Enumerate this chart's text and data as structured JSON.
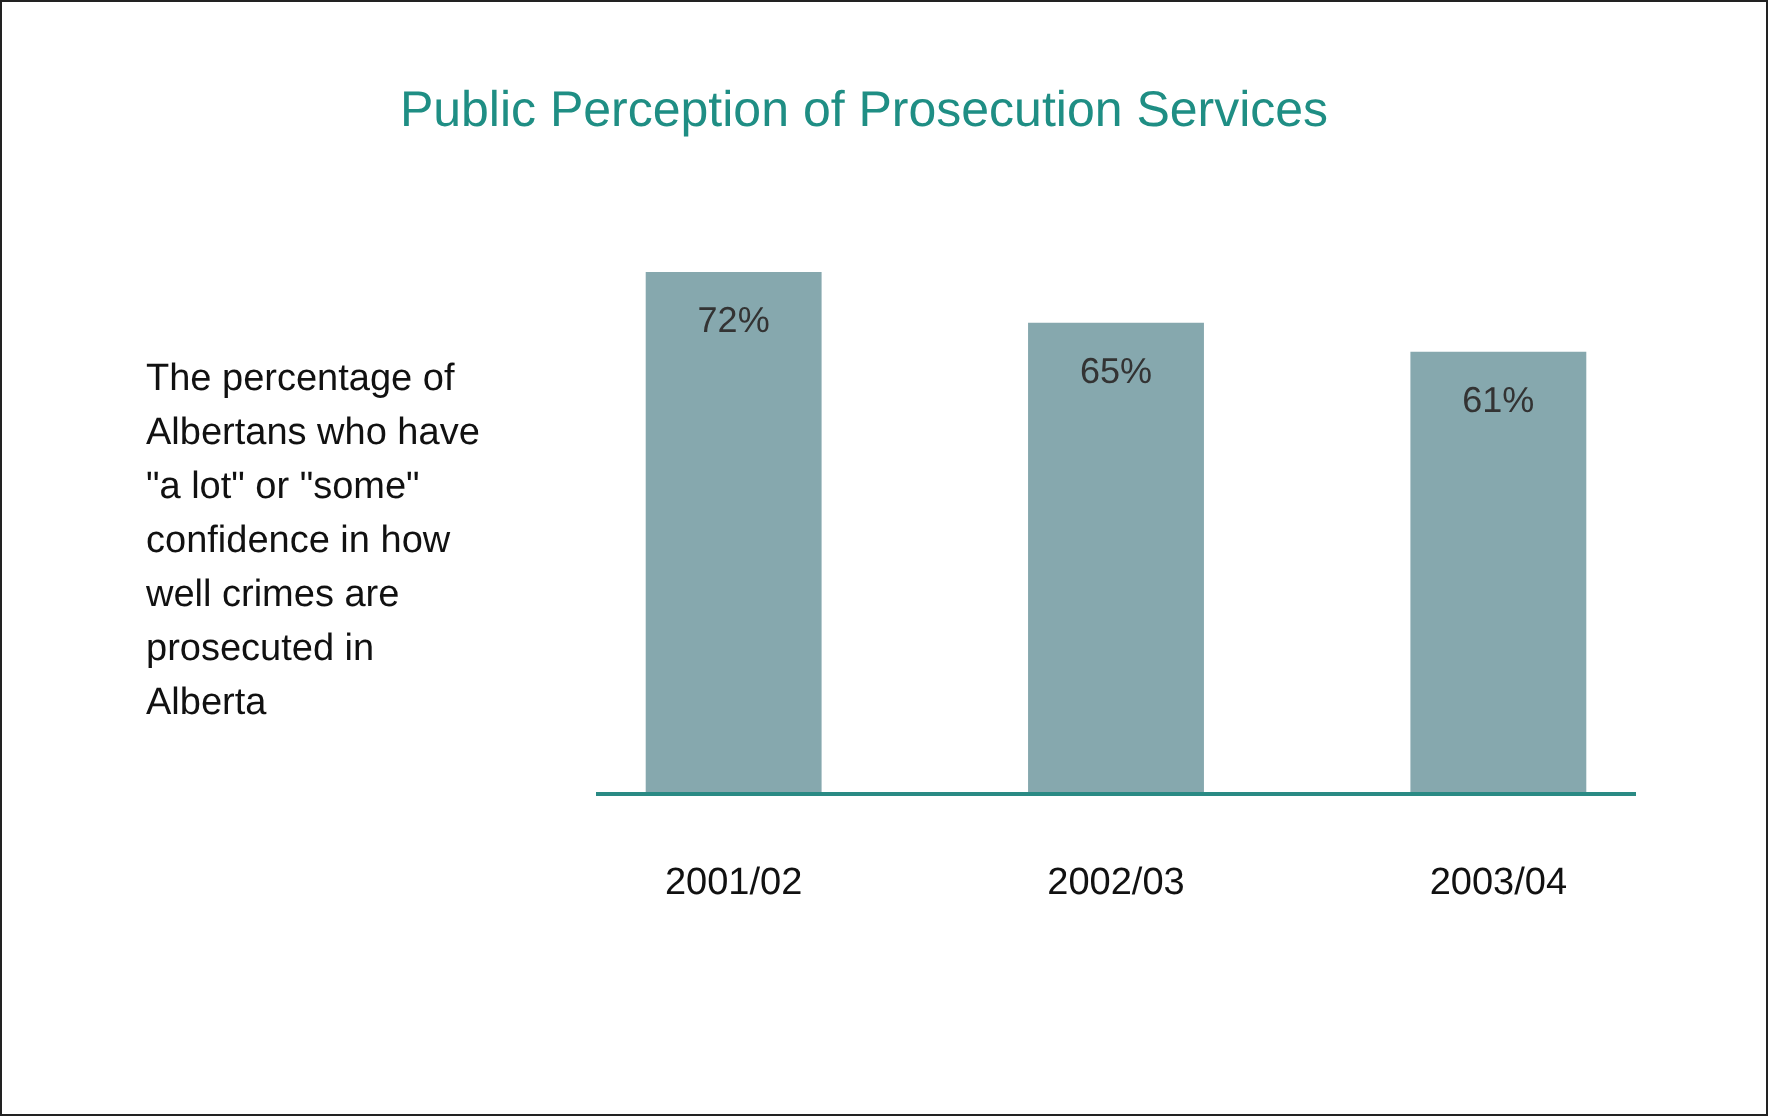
{
  "chart_data": {
    "type": "bar",
    "title": "Public Perception of Prosecution Services",
    "subtitle": "The percentage of Albertans who have \"a lot\" or \"some\" confidence in how well crimes are prosecuted in Alberta",
    "categories": [
      "2001/02",
      "2002/03",
      "2003/04"
    ],
    "values": [
      72,
      65,
      61
    ],
    "value_labels": [
      "72%",
      "65%",
      "61%"
    ],
    "color": "#86a8ae"
  }
}
